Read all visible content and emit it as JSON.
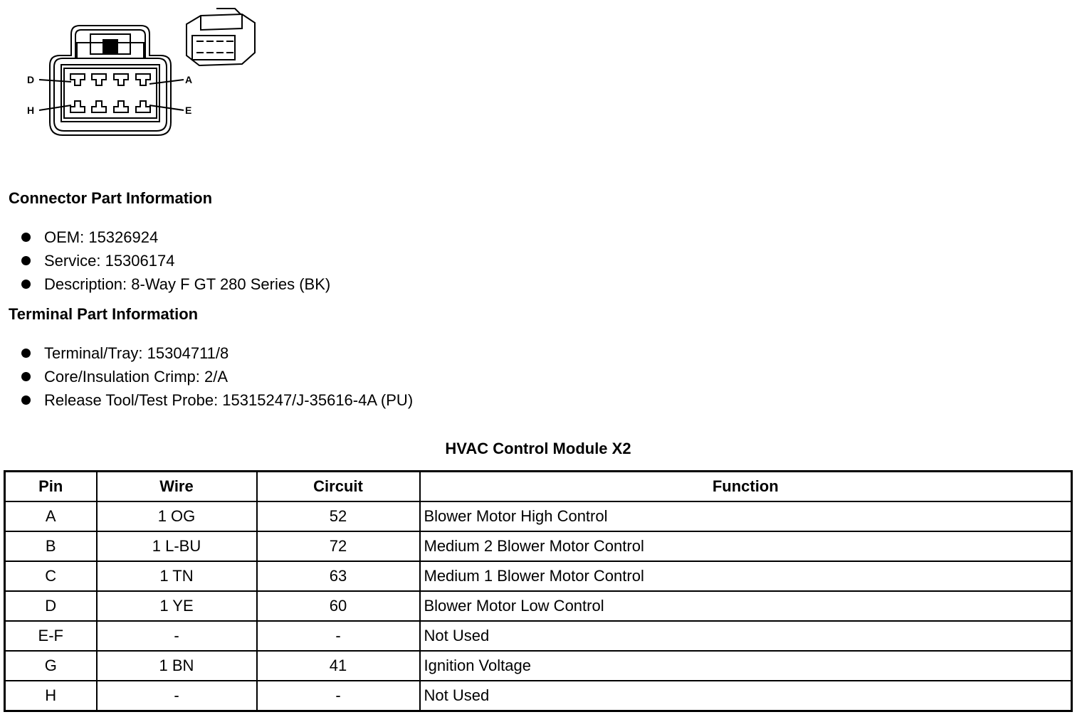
{
  "connector": {
    "labels": {
      "top_left": "D",
      "top_right": "A",
      "bottom_left": "H",
      "bottom_right": "E"
    }
  },
  "connector_info": {
    "heading": "Connector Part Information",
    "items": [
      "OEM: 15326924",
      "Service: 15306174",
      "Description: 8-Way F GT 280 Series (BK)"
    ]
  },
  "terminal_info": {
    "heading": "Terminal Part Information",
    "items": [
      "Terminal/Tray: 15304711/8",
      "Core/Insulation Crimp: 2/A",
      "Release Tool/Test Probe: 15315247/J-35616-4A (PU)"
    ]
  },
  "table": {
    "title": "HVAC Control Module X2",
    "headers": [
      "Pin",
      "Wire",
      "Circuit",
      "Function"
    ],
    "rows": [
      [
        "A",
        "1 OG",
        "52",
        "Blower Motor High Control"
      ],
      [
        "B",
        "1 L-BU",
        "72",
        "Medium 2 Blower Motor Control"
      ],
      [
        "C",
        "1 TN",
        "63",
        "Medium 1 Blower Motor Control"
      ],
      [
        "D",
        "1 YE",
        "60",
        "Blower Motor Low Control"
      ],
      [
        "E-F",
        "-",
        "-",
        "Not Used"
      ],
      [
        "G",
        "1 BN",
        "41",
        "Ignition Voltage"
      ],
      [
        "H",
        "-",
        "-",
        "Not Used"
      ]
    ]
  }
}
